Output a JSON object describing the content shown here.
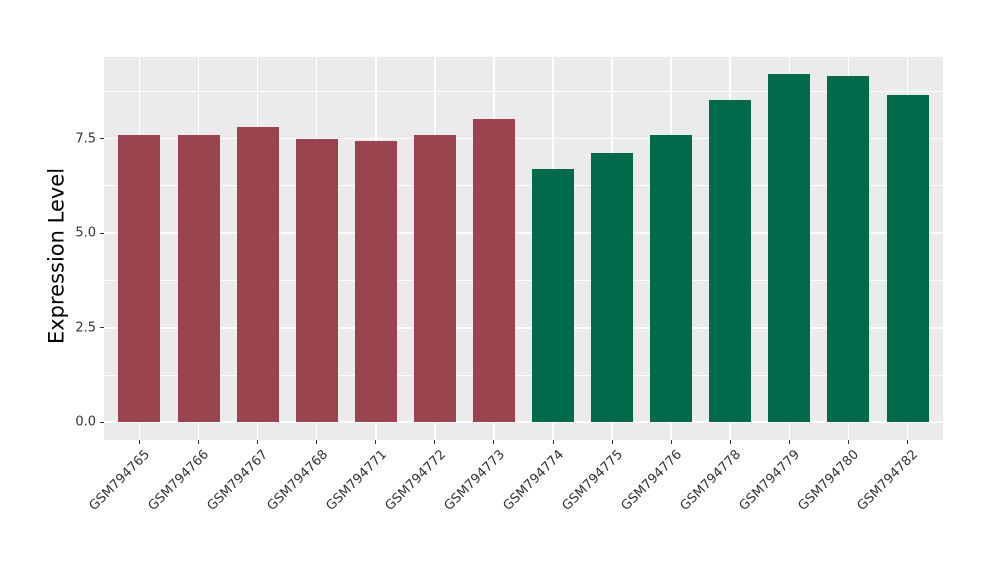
{
  "chart_data": {
    "type": "bar",
    "title": "",
    "xlabel": "",
    "ylabel": "Expression Level",
    "categories": [
      "GSM794765",
      "GSM794766",
      "GSM794767",
      "GSM794768",
      "GSM794771",
      "GSM794772",
      "GSM794773",
      "GSM794774",
      "GSM794775",
      "GSM794776",
      "GSM794778",
      "GSM794779",
      "GSM794780",
      "GSM794782"
    ],
    "values": [
      7.61,
      7.61,
      7.82,
      7.48,
      7.45,
      7.59,
      8.03,
      6.7,
      7.12,
      7.6,
      8.51,
      9.21,
      9.15,
      8.66
    ],
    "groups": [
      "group1",
      "group1",
      "group1",
      "group1",
      "group1",
      "group1",
      "group1",
      "group2",
      "group2",
      "group2",
      "group2",
      "group2",
      "group2",
      "group2"
    ],
    "group_colors": {
      "group1": "#9A4450",
      "group2": "#006B4A"
    },
    "ylim": [
      -0.47,
      9.66
    ],
    "y_major_ticks": [
      0,
      2.5,
      5,
      7.5
    ],
    "y_tick_labels": [
      "0.0",
      "2.5",
      "5.0",
      "7.5"
    ],
    "y_minor_ticks": [
      1.25,
      3.75,
      6.25,
      8.75
    ],
    "x_label_rotation": -45,
    "grid": true,
    "legend": "none",
    "panel_background": "#EBEBEB",
    "grid_color": "#FFFFFF",
    "tick_color": "#333333",
    "axis_text_color": "#333333"
  }
}
